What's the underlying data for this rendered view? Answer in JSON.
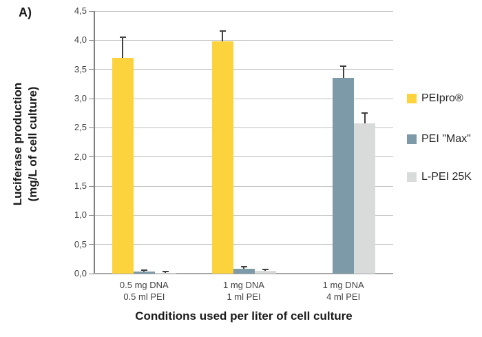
{
  "figure": {
    "label": "A)"
  },
  "chart_data": {
    "type": "bar",
    "title": "",
    "xlabel": "Conditions used per liter of cell culture",
    "ylabel_lines": [
      "Luciferase production",
      "(mg/L of cell culture)"
    ],
    "ylim": [
      0,
      4.5
    ],
    "ytick_step": 0.5,
    "ytick_labels": [
      "0,0",
      "0,5",
      "1,0",
      "1,5",
      "2,0",
      "2,5",
      "3,0",
      "3,5",
      "4,0",
      "4,5"
    ],
    "categories": [
      [
        "0.5 mg DNA",
        "0.5 ml PEI"
      ],
      [
        "1 mg DNA",
        "1 ml PEI"
      ],
      [
        "1 mg DNA",
        "4 ml PEI"
      ]
    ],
    "series": [
      {
        "name": "PEIpro®",
        "color": "#FCD33C",
        "values": [
          3.7,
          3.98,
          null
        ],
        "errors_plus": [
          0.35,
          0.18,
          null
        ]
      },
      {
        "name": "PEI \"Max\"",
        "color": "#7D9AA8",
        "values": [
          0.03,
          0.08,
          3.35
        ],
        "errors_plus": [
          0.03,
          0.04,
          0.2
        ]
      },
      {
        "name": "L-PEI 25K",
        "color": "#D8DBDA",
        "values": [
          0.015,
          0.05,
          2.57
        ],
        "errors_plus": [
          0.02,
          0.02,
          0.18
        ]
      }
    ],
    "legend_position": "right",
    "grid": true
  },
  "colors": {
    "gridline": "#bfbfbf",
    "axis": "#808080",
    "baseline": "#a6a6a6",
    "error_bar": "#404040",
    "tick_text": "#3f3f3f",
    "title_text": "#1a1a1a"
  }
}
